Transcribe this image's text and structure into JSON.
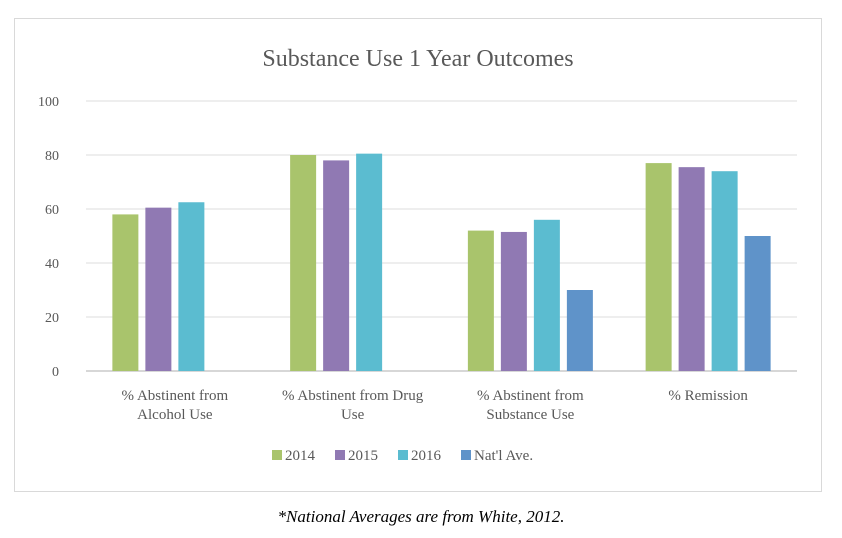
{
  "chart_data": {
    "type": "bar",
    "title": "Substance Use 1 Year Outcomes",
    "xlabel": "",
    "ylabel": "",
    "ylim": [
      0,
      100
    ],
    "yticks": [
      0,
      20,
      40,
      60,
      80,
      100
    ],
    "grid": true,
    "legend_position": "bottom",
    "categories": [
      [
        "% Abstinent from",
        "Alcohol Use"
      ],
      [
        "% Abstinent from Drug",
        "Use"
      ],
      [
        "% Abstinent from",
        "Substance Use"
      ],
      [
        "% Remission"
      ]
    ],
    "series": [
      {
        "name": "2014",
        "color": "#a9c46c",
        "values": [
          58,
          80,
          52,
          77
        ]
      },
      {
        "name": "2015",
        "color": "#9079b3",
        "values": [
          60.5,
          78,
          51.5,
          75.5
        ]
      },
      {
        "name": "2016",
        "color": "#5bbcd0",
        "values": [
          62.5,
          80.5,
          56,
          74
        ]
      },
      {
        "name": "Nat'l Ave.",
        "color": "#5f93c9",
        "values": [
          null,
          null,
          30,
          50
        ]
      }
    ]
  },
  "footnote": "*National Averages are from White, 2012."
}
